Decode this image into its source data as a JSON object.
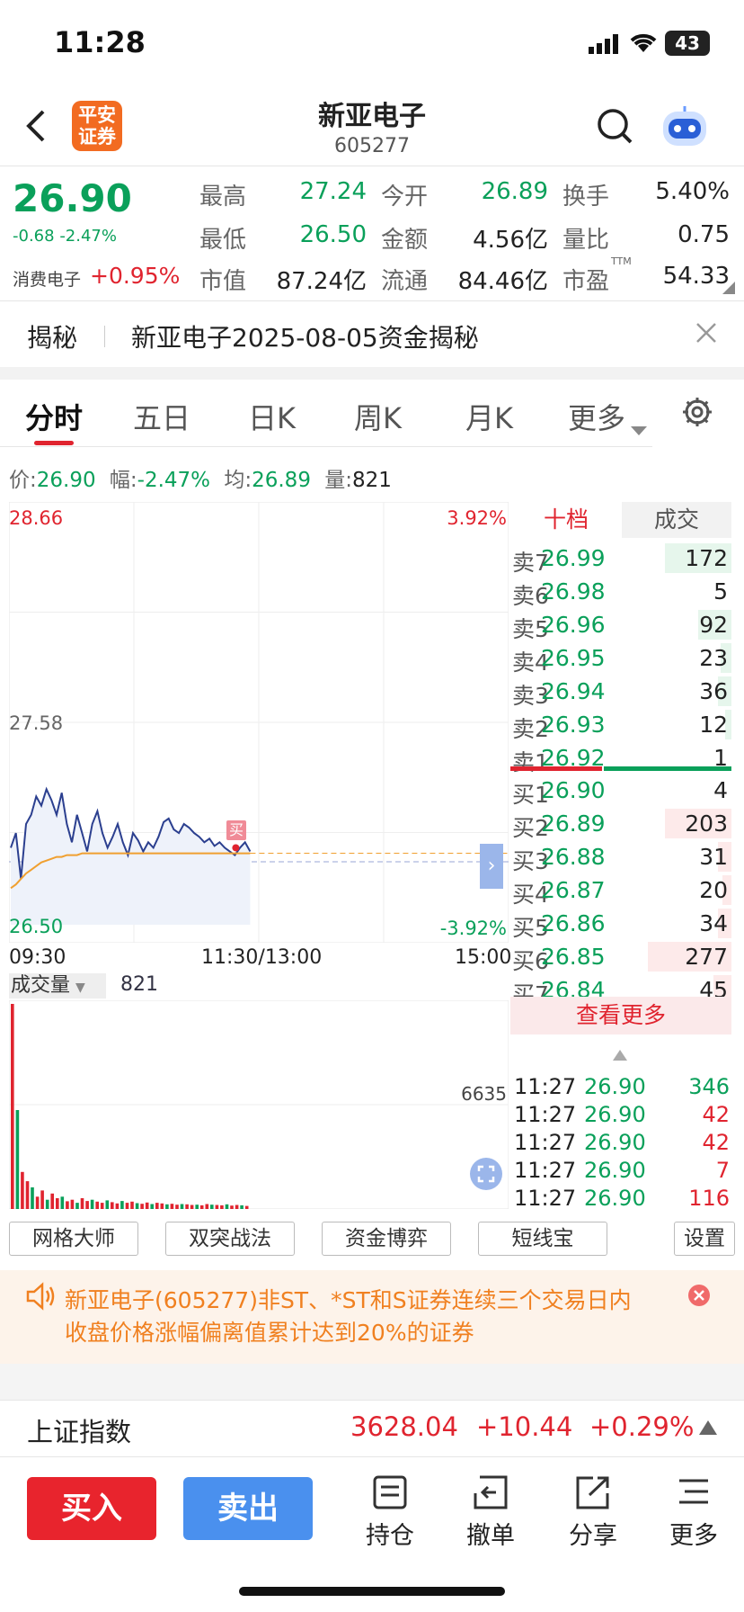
{
  "status": {
    "time": "11:28",
    "battery": "43"
  },
  "header": {
    "name": "新亚电子",
    "code": "605277",
    "logo": "平安\n证券",
    "logo_l1": "平安",
    "logo_l2": "证券"
  },
  "quote": {
    "price": "26.90",
    "change": "-0.68",
    "change_pct": "-2.47%",
    "sector": "消费电子",
    "sector_pct": "+0.95%",
    "items": [
      {
        "label": "最高",
        "value": "27.24"
      },
      {
        "label": "今开",
        "value": "26.89"
      },
      {
        "label": "换手",
        "value": "5.40%"
      },
      {
        "label": "最低",
        "value": "26.50"
      },
      {
        "label": "金额",
        "value": "4.56亿"
      },
      {
        "label": "量比",
        "value": "0.75"
      },
      {
        "label": "市值",
        "value": "87.24亿"
      },
      {
        "label": "流通",
        "value": "84.46亿"
      },
      {
        "label": "市盈",
        "value": "54.33",
        "sup": "TTM"
      }
    ]
  },
  "banner": {
    "tag": "揭秘",
    "text": "新亚电子2025-08-05资金揭秘"
  },
  "tabs": [
    "分时",
    "五日",
    "日K",
    "周K",
    "月K",
    "更多"
  ],
  "info_line": {
    "price_label": "价:",
    "price": "26.90",
    "amp_label": "幅:",
    "amp": "-2.47%",
    "avg_label": "均:",
    "avg": "26.89",
    "vol_label": "量:",
    "vol": "821"
  },
  "chart_data": {
    "type": "line",
    "title": "",
    "y_top": "28.66",
    "y_mid": "27.58",
    "y_bottom": "26.50",
    "pct_top": "3.92%",
    "pct_bottom": "-3.92%",
    "x_labels": [
      "09:30",
      "11:30/13:00",
      "15:00"
    ],
    "ylim": [
      26.5,
      28.66
    ],
    "prev_close": 27.58,
    "series": [
      {
        "values": [
          26.92,
          27.0,
          26.75,
          27.05,
          27.1,
          27.2,
          27.15,
          27.24,
          27.18,
          27.1,
          27.22,
          27.05,
          26.95,
          27.1,
          27.0,
          26.9,
          27.05,
          27.12,
          27.0,
          26.92,
          26.98,
          27.05,
          26.95,
          26.88,
          27.0,
          26.96,
          26.9,
          26.95,
          26.92,
          26.98,
          27.06,
          27.08,
          27.02,
          27.0,
          27.05,
          27.03,
          27.0,
          26.98,
          26.95,
          26.97,
          26.93,
          26.95,
          26.92,
          26.9,
          26.88,
          26.92,
          26.95,
          26.9
        ]
      },
      {
        "values": [
          26.7,
          26.72,
          26.75,
          26.78,
          26.8,
          26.82,
          26.84,
          26.85,
          26.86,
          26.87,
          26.87,
          26.88,
          26.88,
          26.88,
          26.89,
          26.89,
          26.89,
          26.89,
          26.89,
          26.89,
          26.89,
          26.89,
          26.89,
          26.89,
          26.89,
          26.89,
          26.89,
          26.89,
          26.89,
          26.89,
          26.89,
          26.89,
          26.89,
          26.89,
          26.89,
          26.89,
          26.89,
          26.89,
          26.89,
          26.89,
          26.89,
          26.89,
          26.89,
          26.89,
          26.89,
          26.89,
          26.89,
          26.89
        ]
      }
    ],
    "volume_label": "成交量",
    "volume_value": "821",
    "volume_max": "6635",
    "volume": [
      6635,
      3200,
      1200,
      900,
      700,
      400,
      600,
      300,
      500,
      350,
      400,
      250,
      300,
      200,
      350,
      260,
      300,
      240,
      200,
      280,
      220,
      180,
      260,
      200,
      240,
      190,
      170,
      210,
      160,
      200,
      180,
      150,
      170,
      140,
      160,
      150,
      130,
      140,
      120,
      160,
      140,
      130,
      120,
      150,
      110,
      130,
      120,
      100
    ]
  },
  "book": {
    "tab1": "十档",
    "tab2": "成交",
    "asks": [
      {
        "label": "卖7",
        "price": "26.99",
        "vol": "172",
        "bar": 0.3
      },
      {
        "label": "卖6",
        "price": "26.98",
        "vol": "5",
        "bar": 0
      },
      {
        "label": "卖5",
        "price": "26.96",
        "vol": "92",
        "bar": 0.15
      },
      {
        "label": "卖4",
        "price": "26.95",
        "vol": "23",
        "bar": 0.05
      },
      {
        "label": "卖3",
        "price": "26.94",
        "vol": "36",
        "bar": 0.06
      },
      {
        "label": "卖2",
        "price": "26.93",
        "vol": "12",
        "bar": 0.03
      },
      {
        "label": "卖1",
        "price": "26.92",
        "vol": "1",
        "bar": 0
      }
    ],
    "bids": [
      {
        "label": "买1",
        "price": "26.90",
        "vol": "4",
        "bar": 0
      },
      {
        "label": "买2",
        "price": "26.89",
        "vol": "203",
        "bar": 0.3
      },
      {
        "label": "买3",
        "price": "26.88",
        "vol": "31",
        "bar": 0.06
      },
      {
        "label": "买4",
        "price": "26.87",
        "vol": "20",
        "bar": 0.04
      },
      {
        "label": "买5",
        "price": "26.86",
        "vol": "34",
        "bar": 0.06
      },
      {
        "label": "买6",
        "price": "26.85",
        "vol": "277",
        "bar": 0.38
      },
      {
        "label": "买7",
        "price": "26.84",
        "vol": "45",
        "bar": 0.08
      }
    ],
    "more": "查看更多",
    "ticks": [
      {
        "t": "11:27",
        "p": "26.90",
        "v": "346",
        "color": "green"
      },
      {
        "t": "11:27",
        "p": "26.90",
        "v": "42",
        "color": "red"
      },
      {
        "t": "11:27",
        "p": "26.90",
        "v": "42",
        "color": "red"
      },
      {
        "t": "11:27",
        "p": "26.90",
        "v": "7",
        "color": "red"
      },
      {
        "t": "11:27",
        "p": "26.90",
        "v": "116",
        "color": "red"
      }
    ]
  },
  "buy_marker": "买",
  "tools": [
    "网格大师",
    "双突战法",
    "资金博弈",
    "短线宝",
    "设置"
  ],
  "notice": "新亚电子(605277)非ST、*ST和S证券连续三个交易日内收盘价格涨幅偏离值累计达到20%的证券",
  "notice_l1": "新亚电子(605277)非ST、*ST和S证券连续三个交易日内",
  "notice_l2": "收盘价格涨幅偏离值累计达到20%的证券",
  "index": {
    "name": "上证指数",
    "price": "3628.04",
    "change": "+10.44",
    "pct": "+0.29%"
  },
  "actions": {
    "buy": "买入",
    "sell": "卖出",
    "hold": "持仓",
    "cancel": "撤单",
    "share": "分享",
    "more": "更多"
  },
  "colors": {
    "up": "#e0242f",
    "down": "#0aa05a",
    "accent": "#4a8fe8"
  }
}
